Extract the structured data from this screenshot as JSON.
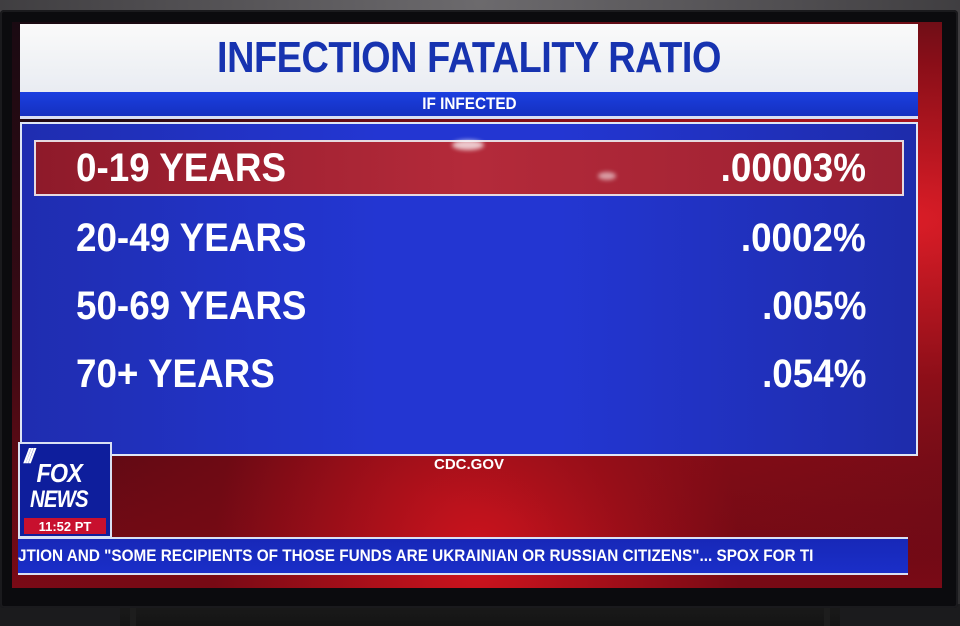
{
  "graphic": {
    "title": "INFECTION FATALITY RATIO",
    "subtitle": "IF INFECTED",
    "rows": [
      {
        "age": "0-19 YEARS",
        "value": ".00003%"
      },
      {
        "age": "20-49 YEARS",
        "value": ".0002%"
      },
      {
        "age": "50-69 YEARS",
        "value": ".005%"
      },
      {
        "age": "70+ YEARS",
        "value": ".054%"
      }
    ],
    "source": "CDC.GOV"
  },
  "logo": {
    "brand_top": "FOX",
    "brand_bottom": "NEWS",
    "time": "11:52 PT"
  },
  "ticker": {
    "text": "JTION AND \"SOME RECIPIENTS OF THOSE FUNDS ARE UKRAINIAN OR RUSSIAN CITIZENS\"... SPOX FOR TI"
  },
  "colors": {
    "title_text": "#1733b0",
    "panel_blue": "#2336d2",
    "highlight_red": "#b42a3a",
    "logo_time_red": "#c8102e"
  }
}
